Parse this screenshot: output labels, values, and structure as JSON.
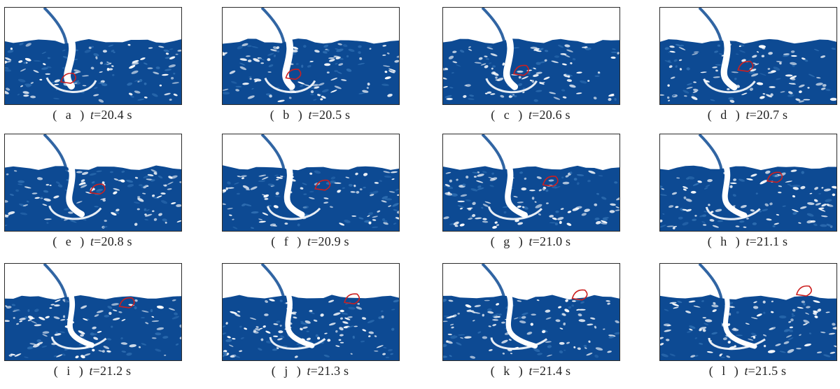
{
  "figure": {
    "panels": [
      {
        "letter": "a",
        "time": "20.4"
      },
      {
        "letter": "b",
        "time": "20.5"
      },
      {
        "letter": "c",
        "time": "20.6"
      },
      {
        "letter": "d",
        "time": "20.7"
      },
      {
        "letter": "e",
        "time": "20.8"
      },
      {
        "letter": "f",
        "time": "20.9"
      },
      {
        "letter": "g",
        "time": "21.0"
      },
      {
        "letter": "h",
        "time": "21.1"
      },
      {
        "letter": "i",
        "time": "21.2"
      },
      {
        "letter": "j",
        "time": "21.3"
      },
      {
        "letter": "k",
        "time": "21.4"
      },
      {
        "letter": "l",
        "time": "21.5"
      }
    ],
    "variable": "t",
    "unit": "s",
    "colors": {
      "water": "#0d4a93",
      "water_light": "#2e6db0",
      "air": "#ffffff",
      "tracked_bubble_outline": "#cc1f1f"
    }
  }
}
